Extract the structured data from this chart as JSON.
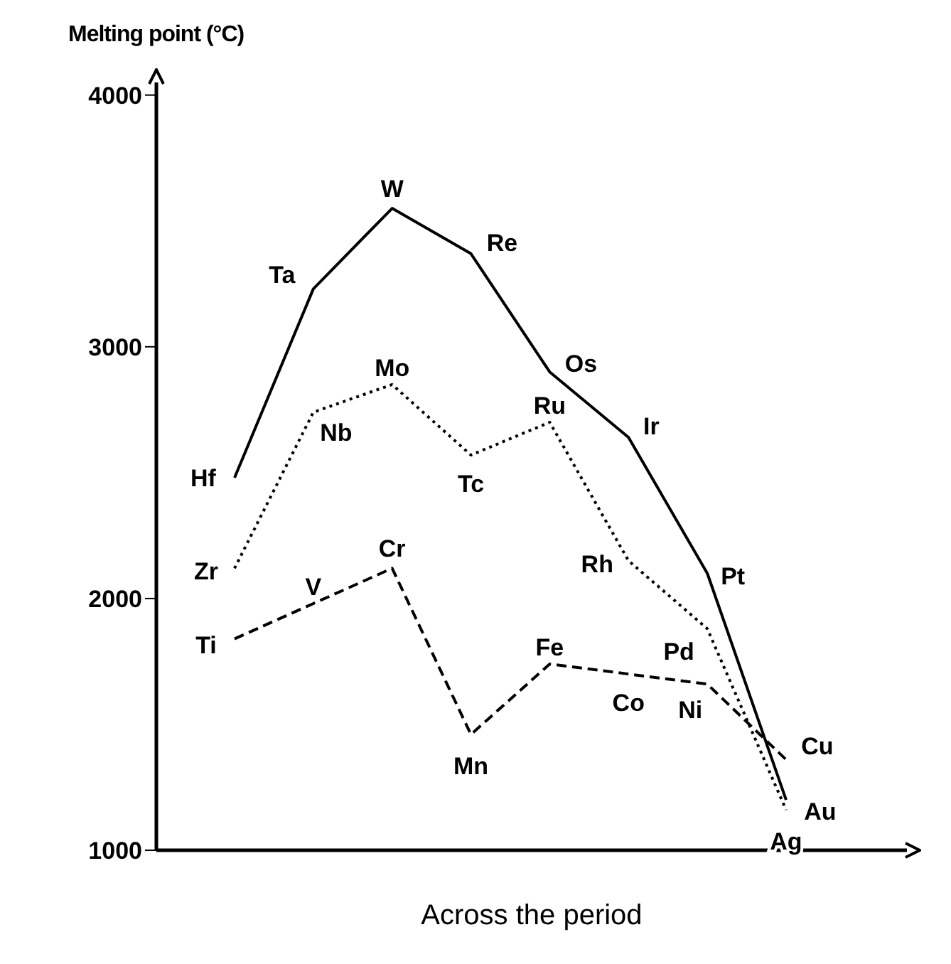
{
  "chart_data": {
    "type": "line",
    "ylabel": "Melting point (°C)",
    "xlabel": "Across the period",
    "categories": [
      null,
      null,
      null,
      null,
      null,
      null,
      null,
      null
    ],
    "series": [
      {
        "color": "#000000",
        "line_style": "solid",
        "values": [
          2480,
          3230,
          3550,
          3370,
          2900,
          2640,
          2100,
          1200
        ],
        "value_labels": [
          "Hf",
          "Ta",
          "W",
          "Re",
          "Os",
          "Ir",
          "Pt",
          "Au"
        ]
      },
      {
        "color": "#000000",
        "line_style": "dotted",
        "values": [
          2120,
          2740,
          2850,
          2570,
          2700,
          2150,
          1880,
          1160
        ],
        "value_labels": [
          "Zr",
          "Nb",
          "Mo",
          "Tc",
          "Ru",
          "Rh",
          "Pd",
          "Ag"
        ]
      },
      {
        "color": "#000000",
        "line_style": "dashed",
        "values": [
          1840,
          1980,
          2120,
          1460,
          1740,
          1700,
          1660,
          1360
        ],
        "value_labels": [
          "Ti",
          "V",
          "Cr",
          "Mn",
          "Fe",
          "Co",
          "Ni",
          "Cu"
        ]
      }
    ],
    "ylim": [
      1000,
      4050
    ],
    "yticks": [
      1000,
      2000,
      3000,
      4000
    ],
    "grid": false,
    "legend": false,
    "marker": "none"
  }
}
